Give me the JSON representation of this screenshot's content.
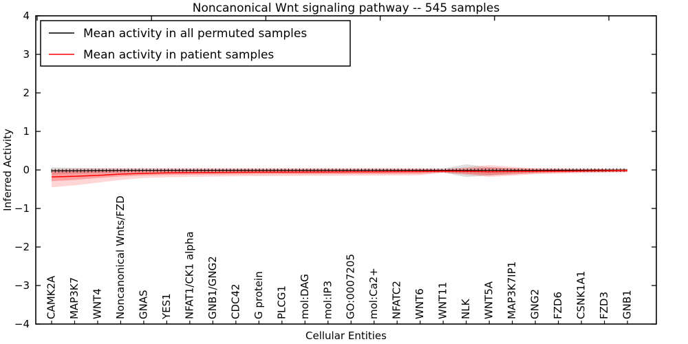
{
  "figure": {
    "title": "Noncanonical Wnt signaling pathway -- 545 samples",
    "xlabel": "Cellular Entities",
    "ylabel": "Inferred Activity",
    "background_color": "#ffffff",
    "frame_color": "#000000"
  },
  "legend": {
    "position": "upper left",
    "entries": [
      {
        "label": "Mean activity in all permuted samples",
        "color": "#000000"
      },
      {
        "label": "Mean activity in patient samples",
        "color": "#ff0000"
      }
    ]
  },
  "chart_data": {
    "type": "line",
    "title": "Noncanonical Wnt signaling pathway -- 545 samples",
    "xlabel": "Cellular Entities",
    "ylabel": "Inferred Activity",
    "ylim": [
      -4,
      4
    ],
    "ytick_labels": [
      "−4",
      "−3",
      "−2",
      "−1",
      "0",
      "1",
      "2",
      "3",
      "4"
    ],
    "yticks": [
      -4,
      -3,
      -2,
      -1,
      0,
      1,
      2,
      3,
      4
    ],
    "grid": false,
    "legend_position": "upper left",
    "categories": [
      "CAMK2A",
      "MAP3K7",
      "WNT4",
      "Noncanonical Wnts/FZD",
      "GNAS",
      "YES1",
      "NFAT1/CK1 alpha",
      "GNB1/GNG2",
      "CDC42",
      "G protein",
      "PLCG1",
      "mol:DAG",
      "mol:IP3",
      "GO:0007205",
      "mol:Ca2+",
      "NFATC2",
      "WNT6",
      "WNT11",
      "NLK",
      "WNT5A",
      "MAP3K7IP1",
      "GNG2",
      "FZD6",
      "CSNK1A1",
      "FZD3",
      "GNB1"
    ],
    "series": [
      {
        "name": "Mean activity in all permuted samples",
        "color": "#000000",
        "marker": "+",
        "values": [
          -0.02,
          -0.02,
          -0.015,
          -0.012,
          -0.01,
          -0.01,
          -0.01,
          -0.01,
          -0.01,
          -0.01,
          -0.01,
          -0.01,
          -0.01,
          -0.01,
          -0.01,
          -0.01,
          -0.01,
          -0.01,
          -0.012,
          -0.01,
          -0.01,
          -0.01,
          -0.008,
          -0.008,
          -0.006,
          -0.005
        ]
      },
      {
        "name": "Mean activity in patient samples",
        "color": "#ff0000",
        "marker": "none",
        "values": [
          -0.18,
          -0.165,
          -0.143,
          -0.107,
          -0.09,
          -0.077,
          -0.07,
          -0.066,
          -0.062,
          -0.059,
          -0.057,
          -0.055,
          -0.054,
          -0.05,
          -0.048,
          -0.045,
          -0.043,
          -0.032,
          -0.036,
          -0.046,
          -0.041,
          -0.036,
          -0.032,
          -0.027,
          -0.021,
          -0.012
        ]
      }
    ],
    "bands": [
      {
        "name": "permuted-samples-range",
        "color": "#000000",
        "opacity": 0.13,
        "hi": [
          0.07,
          0.055,
          0.045,
          0.036,
          0.03,
          0.028,
          0.027,
          0.027,
          0.027,
          0.027,
          0.027,
          0.027,
          0.027,
          0.027,
          0.027,
          0.027,
          0.03,
          0.04,
          0.145,
          0.075,
          0.04,
          0.03,
          0.027,
          0.027,
          0.027,
          0.036
        ],
        "lo": [
          -0.12,
          -0.1,
          -0.08,
          -0.065,
          -0.055,
          -0.052,
          -0.05,
          -0.05,
          -0.05,
          -0.05,
          -0.05,
          -0.05,
          -0.05,
          -0.05,
          -0.05,
          -0.05,
          -0.052,
          -0.07,
          -0.185,
          -0.145,
          -0.09,
          -0.065,
          -0.055,
          -0.052,
          -0.05,
          -0.048
        ]
      },
      {
        "name": "patient-samples-outer-range",
        "color": "#ff0000",
        "opacity": 0.16,
        "hi": [
          0.018,
          0.036,
          0.045,
          0.05,
          0.05,
          0.05,
          0.05,
          0.05,
          0.05,
          0.05,
          0.05,
          0.05,
          0.05,
          0.05,
          0.048,
          0.046,
          0.045,
          0.027,
          0.07,
          0.125,
          0.08,
          0.05,
          0.045,
          0.038,
          0.036,
          0.027
        ],
        "lo": [
          -0.45,
          -0.4,
          -0.33,
          -0.26,
          -0.21,
          -0.19,
          -0.18,
          -0.172,
          -0.166,
          -0.16,
          -0.158,
          -0.155,
          -0.152,
          -0.15,
          -0.147,
          -0.143,
          -0.138,
          -0.075,
          -0.125,
          -0.18,
          -0.15,
          -0.11,
          -0.098,
          -0.082,
          -0.07,
          -0.058
        ]
      },
      {
        "name": "patient-samples-inner-range",
        "color": "#ff0000",
        "opacity": 0.25,
        "hi": [
          -0.036,
          -0.027,
          -0.018,
          -0.009,
          -0.004,
          0.004,
          0.009,
          0.012,
          0.014,
          0.015,
          0.016,
          0.017,
          0.017,
          0.018,
          0.018,
          0.018,
          0.018,
          0.012,
          0.036,
          0.063,
          0.045,
          0.027,
          0.02,
          0.015,
          0.013,
          0.01
        ],
        "lo": [
          -0.29,
          -0.26,
          -0.21,
          -0.168,
          -0.143,
          -0.13,
          -0.124,
          -0.119,
          -0.115,
          -0.112,
          -0.11,
          -0.109,
          -0.107,
          -0.106,
          -0.105,
          -0.103,
          -0.1,
          -0.062,
          -0.1,
          -0.14,
          -0.115,
          -0.09,
          -0.072,
          -0.062,
          -0.057,
          -0.05
        ]
      }
    ]
  }
}
